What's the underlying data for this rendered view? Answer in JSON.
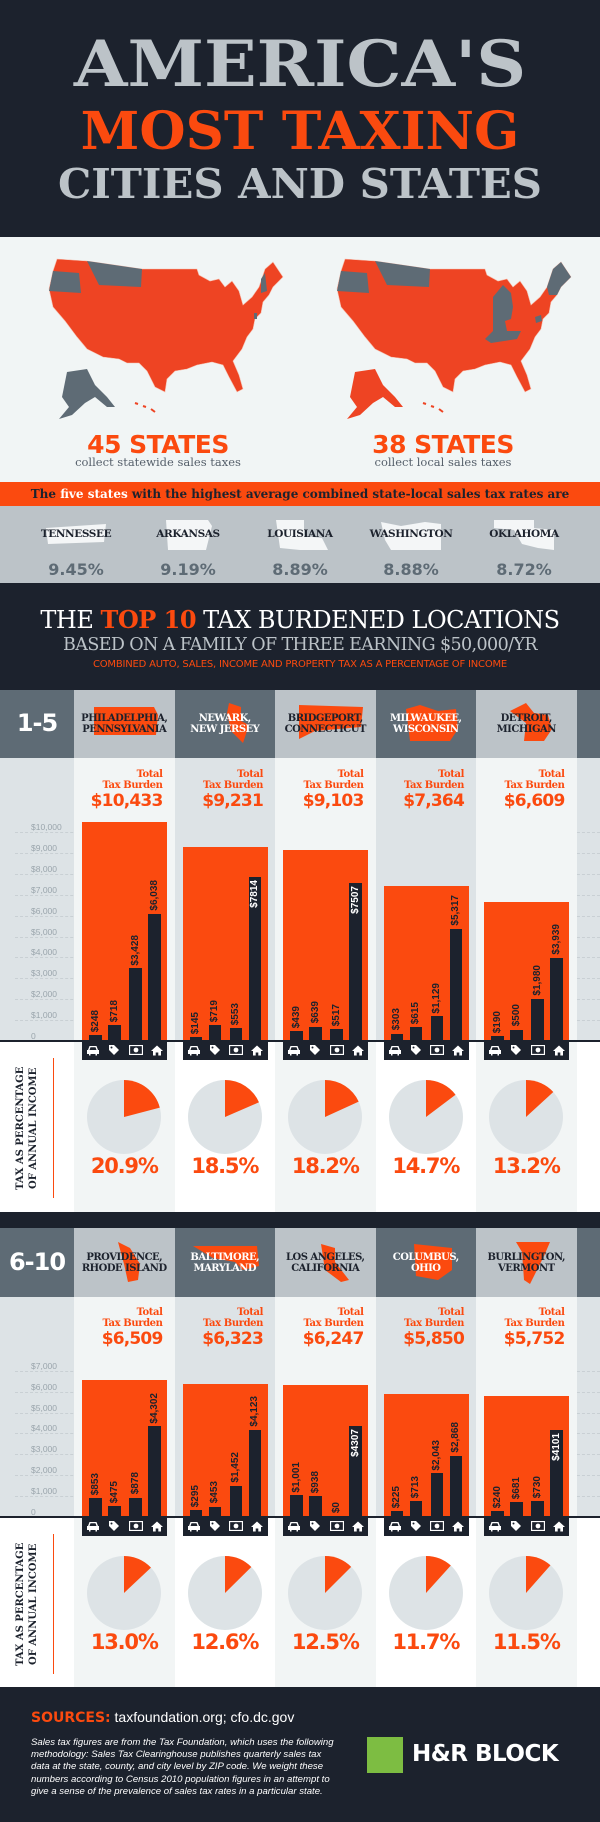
{
  "title": {
    "line1": "AMERICA'S",
    "line2": "MOST TAXING",
    "line3": "CITIES AND STATES"
  },
  "maps": [
    {
      "count": "45 STATES",
      "caption": "collect statewide sales taxes"
    },
    {
      "count": "38 STATES",
      "caption": "collect local sales taxes"
    }
  ],
  "banner": {
    "pre": "The ",
    "highlight": "five states",
    "post": " with the highest average combined state-local sales tax rates are"
  },
  "top_states": [
    {
      "name": "TENNESSEE",
      "rate": "9.45%"
    },
    {
      "name": "ARKANSAS",
      "rate": "9.19%"
    },
    {
      "name": "LOUISIANA",
      "rate": "8.89%"
    },
    {
      "name": "WASHINGTON",
      "rate": "8.88%"
    },
    {
      "name": "OKLAHOMA",
      "rate": "8.72%"
    }
  ],
  "top10": {
    "heading_pre": "THE ",
    "heading_highlight": "TOP 10",
    "heading_post": " TAX BURDENED LOCATIONS",
    "subtitle": "BASED ON A FAMILY OF THREE EARNING $50,000/YR",
    "note": "COMBINED AUTO, SALES, INCOME AND PROPERTY TAX AS A PERCENTAGE OF INCOME"
  },
  "total_label": {
    "line1": "Total",
    "line2": "Tax Burden"
  },
  "pie_label": {
    "line1": "TAX AS PERCENTAGE",
    "line2": "OF ANNUAL INCOME"
  },
  "category_icons": [
    "car-icon",
    "tag-icon",
    "money-icon",
    "home-icon"
  ],
  "colors": {
    "accent": "#fb4a0f",
    "dark": "#1c222d",
    "gray": "#5e6b75",
    "light_gray": "#bcc3c8",
    "pie_rest": "#dde3e6",
    "logo_green": "#7dbd42"
  },
  "chart_data": [
    {
      "type": "bar",
      "group_label": "1-5",
      "ylim": [
        0,
        10000
      ],
      "yticks": [
        "$10,000",
        "$9,000",
        "$8,000",
        "$7,000",
        "$6,000",
        "$5,000",
        "$4,000",
        "$3,000",
        "$2,000",
        "$1,000",
        "0"
      ],
      "ytick_values": [
        10000,
        9000,
        8000,
        7000,
        6000,
        5000,
        4000,
        3000,
        2000,
        1000,
        0
      ],
      "locations": [
        {
          "city": "PHILADELPHIA,",
          "state": "PENNSYLVANIA",
          "total_label": "$10,433",
          "total": 10433,
          "values": [
            248,
            718,
            3428,
            6038
          ],
          "value_labels": [
            "$248",
            "$718",
            "$3,428",
            "$6,038"
          ],
          "pct_label": "20.9%",
          "pct": 20.9
        },
        {
          "city": "NEWARK,",
          "state": "NEW JERSEY",
          "total_label": "$9,231",
          "total": 9231,
          "values": [
            145,
            719,
            553,
            7814
          ],
          "value_labels": [
            "$145",
            "$719",
            "$553",
            "$7814"
          ],
          "pct_label": "18.5%",
          "pct": 18.5
        },
        {
          "city": "BRIDGEPORT,",
          "state": "CONNECTICUT",
          "total_label": "$9,103",
          "total": 9103,
          "values": [
            439,
            639,
            517,
            7507
          ],
          "value_labels": [
            "$439",
            "$639",
            "$517",
            "$7507"
          ],
          "pct_label": "18.2%",
          "pct": 18.2
        },
        {
          "city": "MILWAUKEE,",
          "state": "WISCONSIN",
          "total_label": "$7,364",
          "total": 7364,
          "values": [
            303,
            615,
            1129,
            5317
          ],
          "value_labels": [
            "$303",
            "$615",
            "$1,129",
            "$5,317"
          ],
          "pct_label": "14.7%",
          "pct": 14.7
        },
        {
          "city": "DETROIT,",
          "state": "MICHIGAN",
          "total_label": "$6,609",
          "total": 6609,
          "values": [
            190,
            500,
            1980,
            3939
          ],
          "value_labels": [
            "$190",
            "$500",
            "$1,980",
            "$3,939"
          ],
          "pct_label": "13.2%",
          "pct": 13.2
        }
      ]
    },
    {
      "type": "bar",
      "group_label": "6-10",
      "ylim": [
        0,
        7000
      ],
      "yticks": [
        "$7,000",
        "$6,000",
        "$5,000",
        "$4,000",
        "$3,000",
        "$2,000",
        "$1,000",
        "0"
      ],
      "ytick_values": [
        7000,
        6000,
        5000,
        4000,
        3000,
        2000,
        1000,
        0
      ],
      "locations": [
        {
          "city": "PROVIDENCE,",
          "state": "RHODE ISLAND",
          "total_label": "$6,509",
          "total": 6509,
          "values": [
            853,
            475,
            878,
            4302
          ],
          "value_labels": [
            "$853",
            "$475",
            "$878",
            "$4,302"
          ],
          "pct_label": "13.0%",
          "pct": 13.0
        },
        {
          "city": "BALTIMORE,",
          "state": "MARYLAND",
          "total_label": "$6,323",
          "total": 6323,
          "values": [
            295,
            453,
            1452,
            4123
          ],
          "value_labels": [
            "$295",
            "$453",
            "$1,452",
            "$4,123"
          ],
          "pct_label": "12.6%",
          "pct": 12.6
        },
        {
          "city": "LOS ANGELES,",
          "state": "CALIFORNIA",
          "total_label": "$6,247",
          "total": 6247,
          "values": [
            1001,
            938,
            0,
            4307
          ],
          "value_labels": [
            "$1,001",
            "$938",
            "$0",
            "$4307"
          ],
          "pct_label": "12.5%",
          "pct": 12.5
        },
        {
          "city": "COLUMBUS,",
          "state": "OHIO",
          "total_label": "$5,850",
          "total": 5850,
          "values": [
            225,
            713,
            2043,
            2868
          ],
          "value_labels": [
            "$225",
            "$713",
            "$2,043",
            "$2,868"
          ],
          "pct_label": "11.7%",
          "pct": 11.7
        },
        {
          "city": "BURLINGTON,",
          "state": "VERMONT",
          "total_label": "$5,752",
          "total": 5752,
          "values": [
            240,
            681,
            730,
            4101
          ],
          "value_labels": [
            "$240",
            "$681",
            "$730",
            "$4101"
          ],
          "pct_label": "11.5%",
          "pct": 11.5
        }
      ]
    }
  ],
  "footer": {
    "sources_label": "SOURCES:",
    "sources": " taxfoundation.org; cfo.dc.gov",
    "body": "Sales tax figures are from the Tax Foundation, which uses the following methodology: Sales Tax Clearinghouse publishes quarterly sales tax data at the state, county, and city level by ZIP code. We weight these numbers according to Census 2010 population figures in an attempt to give a sense of the prevalence of sales tax rates in a particular state.",
    "logo_text": "H&R BLOCK"
  }
}
